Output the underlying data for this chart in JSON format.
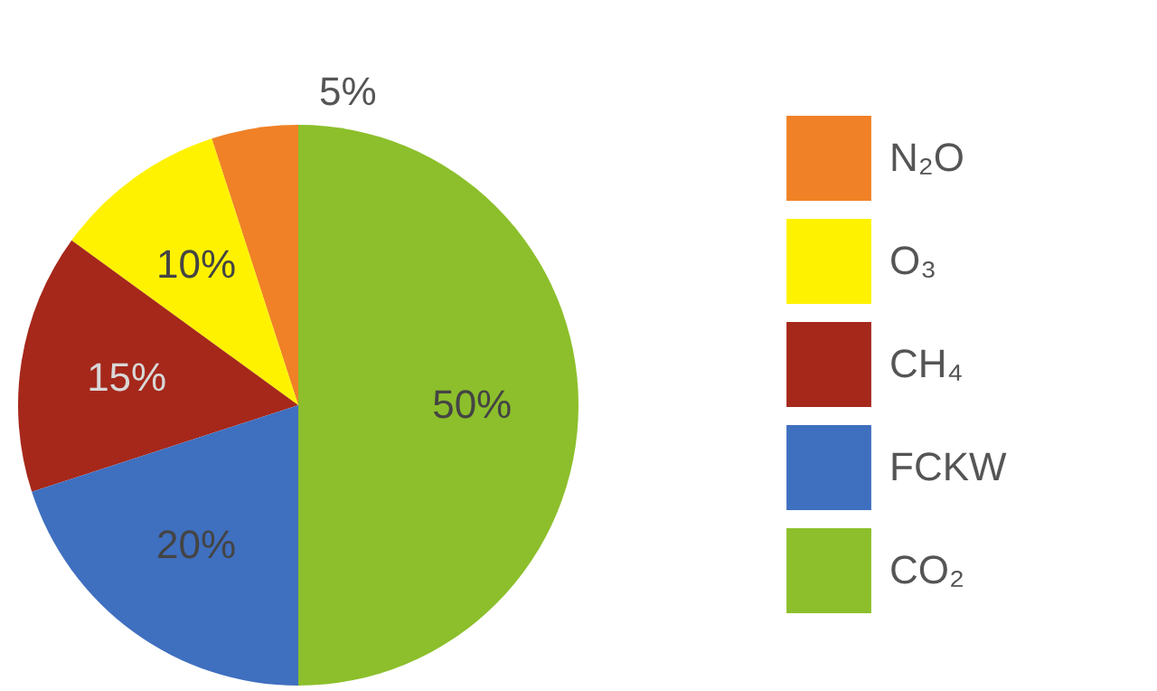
{
  "chart_data": {
    "type": "pie",
    "categories": [
      "N₂O",
      "O₃",
      "CH₄",
      "FCKW",
      "CO₂"
    ],
    "values": [
      5,
      10,
      15,
      20,
      50
    ],
    "colors": [
      "#f08126",
      "#fff200",
      "#a5281b",
      "#3f6fbf",
      "#8cbf2b"
    ],
    "value_labels": [
      "5%",
      "10%",
      "15%",
      "20%",
      "50%"
    ],
    "legend": "right"
  }
}
